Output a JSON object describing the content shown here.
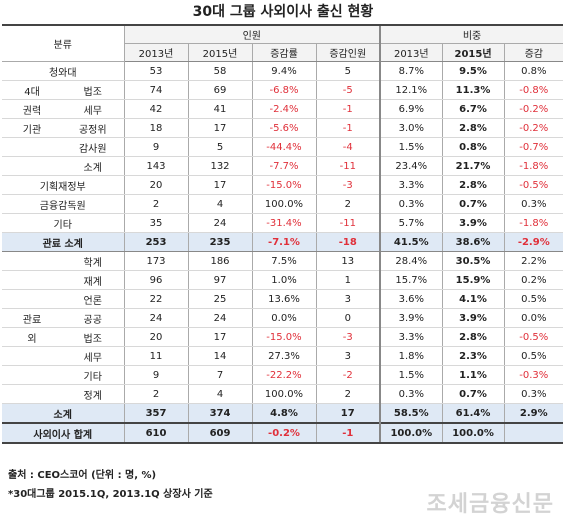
{
  "title": "30대 그룹 사외이사 출신 현황",
  "header": {
    "category": "분류",
    "people": "인원",
    "share": "비중",
    "y2013": "2013년",
    "y2015": "2015년",
    "change_rate": "증감률",
    "change_count": "증감인원",
    "share_change": "증감"
  },
  "rows": [
    {
      "cat1": "청와대",
      "cat2": "",
      "a": "53",
      "b": "58",
      "c": "9.4%",
      "d": "5",
      "e": "8.7%",
      "f": "9.5%",
      "g": "0.8%",
      "neg": [
        false,
        false,
        false,
        false,
        false,
        false,
        false
      ],
      "style": "normal"
    },
    {
      "cat1": "4대",
      "cat2": "법조",
      "a": "74",
      "b": "69",
      "c": "-6.8%",
      "d": "-5",
      "e": "12.1%",
      "f": "11.3%",
      "g": "-0.8%",
      "neg": [
        false,
        false,
        true,
        true,
        false,
        false,
        true
      ],
      "style": "normal"
    },
    {
      "cat1": "권력",
      "cat2": "세무",
      "a": "42",
      "b": "41",
      "c": "-2.4%",
      "d": "-1",
      "e": "6.9%",
      "f": "6.7%",
      "g": "-0.2%",
      "neg": [
        false,
        false,
        true,
        true,
        false,
        false,
        true
      ],
      "style": "normal"
    },
    {
      "cat1": "기관",
      "cat2": "공정위",
      "a": "18",
      "b": "17",
      "c": "-5.6%",
      "d": "-1",
      "e": "3.0%",
      "f": "2.8%",
      "g": "-0.2%",
      "neg": [
        false,
        false,
        true,
        true,
        false,
        false,
        true
      ],
      "style": "normal"
    },
    {
      "cat1": "",
      "cat2": "감사원",
      "a": "9",
      "b": "5",
      "c": "-44.4%",
      "d": "-4",
      "e": "1.5%",
      "f": "0.8%",
      "g": "-0.7%",
      "neg": [
        false,
        false,
        true,
        true,
        false,
        false,
        true
      ],
      "style": "normal"
    },
    {
      "cat1": "",
      "cat2": "소계",
      "a": "143",
      "b": "132",
      "c": "-7.7%",
      "d": "-11",
      "e": "23.4%",
      "f": "21.7%",
      "g": "-1.8%",
      "neg": [
        false,
        false,
        true,
        true,
        false,
        false,
        true
      ],
      "style": "normal"
    },
    {
      "cat1": "기획재정부",
      "cat2": "",
      "a": "20",
      "b": "17",
      "c": "-15.0%",
      "d": "-3",
      "e": "3.3%",
      "f": "2.8%",
      "g": "-0.5%",
      "neg": [
        false,
        false,
        true,
        true,
        false,
        false,
        true
      ],
      "style": "normal"
    },
    {
      "cat1": "금융감독원",
      "cat2": "",
      "a": "2",
      "b": "4",
      "c": "100.0%",
      "d": "2",
      "e": "0.3%",
      "f": "0.7%",
      "g": "0.3%",
      "neg": [
        false,
        false,
        false,
        false,
        false,
        false,
        false
      ],
      "style": "normal"
    },
    {
      "cat1": "기타",
      "cat2": "",
      "a": "35",
      "b": "24",
      "c": "-31.4%",
      "d": "-11",
      "e": "5.7%",
      "f": "3.9%",
      "g": "-1.8%",
      "neg": [
        false,
        false,
        true,
        true,
        false,
        false,
        true
      ],
      "style": "normal"
    },
    {
      "cat1": "관료 소계",
      "cat2": "",
      "a": "253",
      "b": "235",
      "c": "-7.1%",
      "d": "-18",
      "e": "41.5%",
      "f": "38.6%",
      "g": "-2.9%",
      "neg": [
        false,
        false,
        true,
        true,
        false,
        false,
        true
      ],
      "style": "sub"
    },
    {
      "cat1": "",
      "cat2": "학계",
      "a": "173",
      "b": "186",
      "c": "7.5%",
      "d": "13",
      "e": "28.4%",
      "f": "30.5%",
      "g": "2.2%",
      "neg": [
        false,
        false,
        false,
        false,
        false,
        false,
        false
      ],
      "style": "normal"
    },
    {
      "cat1": "",
      "cat2": "재계",
      "a": "96",
      "b": "97",
      "c": "1.0%",
      "d": "1",
      "e": "15.7%",
      "f": "15.9%",
      "g": "0.2%",
      "neg": [
        false,
        false,
        false,
        false,
        false,
        false,
        false
      ],
      "style": "normal"
    },
    {
      "cat1": "",
      "cat2": "언론",
      "a": "22",
      "b": "25",
      "c": "13.6%",
      "d": "3",
      "e": "3.6%",
      "f": "4.1%",
      "g": "0.5%",
      "neg": [
        false,
        false,
        false,
        false,
        false,
        false,
        false
      ],
      "style": "normal"
    },
    {
      "cat1": "관료",
      "cat2": "공공",
      "a": "24",
      "b": "24",
      "c": "0.0%",
      "d": "0",
      "e": "3.9%",
      "f": "3.9%",
      "g": "0.0%",
      "neg": [
        false,
        false,
        false,
        false,
        false,
        false,
        false
      ],
      "style": "normal"
    },
    {
      "cat1": "외",
      "cat2": "법조",
      "a": "20",
      "b": "17",
      "c": "-15.0%",
      "d": "-3",
      "e": "3.3%",
      "f": "2.8%",
      "g": "-0.5%",
      "neg": [
        false,
        false,
        true,
        true,
        false,
        false,
        true
      ],
      "style": "normal"
    },
    {
      "cat1": "",
      "cat2": "세무",
      "a": "11",
      "b": "14",
      "c": "27.3%",
      "d": "3",
      "e": "1.8%",
      "f": "2.3%",
      "g": "0.5%",
      "neg": [
        false,
        false,
        false,
        false,
        false,
        false,
        false
      ],
      "style": "normal"
    },
    {
      "cat1": "",
      "cat2": "기타",
      "a": "9",
      "b": "7",
      "c": "-22.2%",
      "d": "-2",
      "e": "1.5%",
      "f": "1.1%",
      "g": "-0.3%",
      "neg": [
        false,
        false,
        true,
        true,
        false,
        false,
        true
      ],
      "style": "normal"
    },
    {
      "cat1": "",
      "cat2": "정계",
      "a": "2",
      "b": "4",
      "c": "100.0%",
      "d": "2",
      "e": "0.3%",
      "f": "0.7%",
      "g": "0.3%",
      "neg": [
        false,
        false,
        false,
        false,
        false,
        false,
        false
      ],
      "style": "normal"
    },
    {
      "cat1": "소계",
      "cat2": "",
      "a": "357",
      "b": "374",
      "c": "4.8%",
      "d": "17",
      "e": "58.5%",
      "f": "61.4%",
      "g": "2.9%",
      "neg": [
        false,
        false,
        false,
        false,
        false,
        false,
        false
      ],
      "style": "sub"
    },
    {
      "cat1": "사외이사 합계",
      "cat2": "",
      "a": "610",
      "b": "609",
      "c": "-0.2%",
      "d": "-1",
      "e": "100.0%",
      "f": "100.0%",
      "g": "",
      "neg": [
        false,
        false,
        true,
        true,
        false,
        false,
        false
      ],
      "style": "total"
    }
  ],
  "footer": {
    "source": "출처 : CEO스코어 (단위 : 명, %)",
    "note": "*30대그룹 2015.1Q, 2013.1Q 상장사 기준"
  },
  "watermark": "조세금융신문"
}
